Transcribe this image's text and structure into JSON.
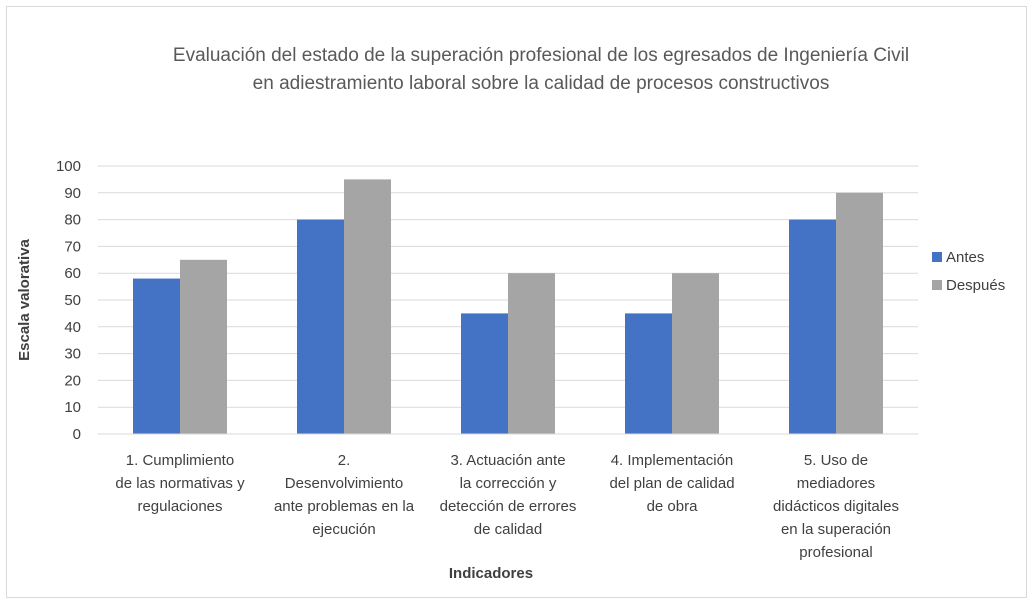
{
  "chart_data": {
    "type": "bar",
    "title": [
      "Evaluación del estado de la superación profesional de los egresados de Ingeniería Civil",
      "en adiestramiento laboral sobre la calidad de procesos constructivos"
    ],
    "xlabel": "Indicadores",
    "ylabel": "Escala valorativa",
    "ylim": [
      0,
      100
    ],
    "yticks": [
      0,
      10,
      20,
      30,
      40,
      50,
      60,
      70,
      80,
      90,
      100
    ],
    "grid": true,
    "legend_position": "right",
    "categories": [
      [
        "1.    Cumplimiento",
        "de las normativas y",
        "regulaciones"
      ],
      [
        "2.",
        "Desenvolvimiento",
        "ante problemas en la",
        "ejecución"
      ],
      [
        "3.    Actuación ante",
        "la corrección y",
        "detección de errores",
        "de calidad"
      ],
      [
        "4.    Implementación",
        "del plan de calidad",
        "de obra"
      ],
      [
        "5.    Uso de",
        "mediadores",
        "didácticos digitales",
        "en la superación",
        "profesional"
      ]
    ],
    "series": [
      {
        "name": "Antes",
        "color": "#4472c4",
        "values": [
          58,
          80,
          45,
          45,
          80
        ]
      },
      {
        "name": "Después",
        "color": "#a5a5a5",
        "values": [
          65,
          95,
          60,
          60,
          90
        ]
      }
    ]
  }
}
